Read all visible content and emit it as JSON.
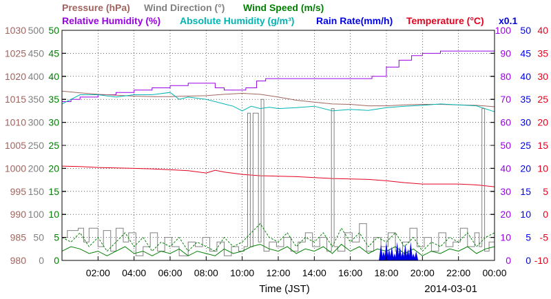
{
  "colors": {
    "pressure": "#a0645f",
    "wind_direction": "#808080",
    "wind_speed": "#008000",
    "relative_humidity": "#9a00e6",
    "absolute_humidity": "#00b4b4",
    "rain_rate": "#0000e6",
    "temperature": "#e6001e",
    "grid": "#000000"
  },
  "chart_data": {
    "type": "line",
    "date": "2014-03-01",
    "xlabel": "Time (JST)",
    "grid": true,
    "x_range": [
      0,
      24
    ],
    "x_ticks": [
      {
        "x": 2,
        "label": "02:00"
      },
      {
        "x": 4,
        "label": "04:00"
      },
      {
        "x": 6,
        "label": "06:00"
      },
      {
        "x": 8,
        "label": "08:00"
      },
      {
        "x": 10,
        "label": "10:00"
      },
      {
        "x": 12,
        "label": "12:00"
      },
      {
        "x": 14,
        "label": "14:00"
      },
      {
        "x": 16,
        "label": "16:00"
      },
      {
        "x": 18,
        "label": "18:00"
      },
      {
        "x": 20,
        "label": "20:00"
      },
      {
        "x": 22,
        "label": "22:00"
      },
      {
        "x": 24,
        "label": "00:00"
      }
    ],
    "legend_rows": [
      [
        {
          "text": "Pressure (hPa)",
          "series": "pressure"
        },
        {
          "text": "Wind Direction (°)",
          "series": "wind_direction"
        },
        {
          "text": "Wind Speed (m/s)",
          "series": "wind_speed"
        }
      ],
      [
        {
          "text": "Relative Humidity (%)",
          "series": "relative_humidity"
        },
        {
          "text": "Absolute Humidity (g/m³)",
          "series": "absolute_humidity"
        },
        {
          "text": "Rain Rate(mm/h)",
          "series": "rain_rate"
        },
        {
          "text": "Temperature (°C)",
          "series": "temperature"
        },
        {
          "text": "x0.1",
          "series": "rain_rate"
        }
      ]
    ],
    "axes": [
      {
        "key": "pressure",
        "side": "left",
        "range": [
          980,
          1030
        ],
        "ticks": [
          "980",
          "985",
          "990",
          "995",
          "1000",
          "1005",
          "1010",
          "1015",
          "1020",
          "1025",
          "1030"
        ]
      },
      {
        "key": "wind_direction",
        "side": "left",
        "range": [
          0,
          500
        ],
        "ticks": [
          "0",
          "50",
          "100",
          "150",
          "200",
          "250",
          "300",
          "350",
          "400",
          "450",
          "500"
        ]
      },
      {
        "key": "wind_speed",
        "side": "left",
        "range": [
          0,
          50
        ],
        "ticks": [
          "0",
          "5",
          "10",
          "15",
          "20",
          "25",
          "30",
          "35",
          "40",
          "45",
          "50"
        ]
      },
      {
        "key": "relative_humidity",
        "side": "right",
        "range": [
          0,
          100
        ],
        "ticks": [
          "0",
          "10",
          "20",
          "30",
          "40",
          "50",
          "60",
          "70",
          "80",
          "90",
          "100"
        ]
      },
      {
        "key": "rain_rate",
        "side": "right",
        "range": [
          0,
          50
        ],
        "ticks": [
          "0",
          "5",
          "10",
          "15",
          "20",
          "25",
          "30",
          "35",
          "40",
          "45",
          "50"
        ]
      },
      {
        "key": "temperature",
        "side": "right",
        "range": [
          -10,
          40
        ],
        "ticks": [
          "-10",
          "-5",
          "0",
          "5",
          "10",
          "15",
          "20",
          "25",
          "30",
          "35",
          "40"
        ]
      }
    ],
    "series": [
      {
        "key": "relative_humidity",
        "axis": "relative_humidity",
        "style": "step",
        "x": [
          0,
          0.5,
          1,
          2,
          3,
          4,
          5,
          6,
          7,
          7.8,
          8.5,
          9,
          9.5,
          10.2,
          10.8,
          11.3,
          12,
          13,
          14,
          15,
          16,
          17.2,
          18,
          18.7,
          19.4,
          20,
          21,
          22,
          23,
          24
        ],
        "y": [
          69,
          70,
          71,
          72,
          73,
          74,
          75,
          76,
          77,
          77,
          75,
          74,
          74,
          75,
          78,
          79,
          79,
          79,
          79,
          79,
          79,
          80,
          84,
          87,
          89,
          90,
          91,
          91,
          91,
          91
        ]
      },
      {
        "key": "pressure",
        "axis": "pressure",
        "style": "line",
        "x": [
          0,
          1,
          2,
          3,
          4,
          5,
          6,
          7,
          8,
          9,
          10,
          11,
          12,
          13,
          14,
          15,
          16,
          17,
          18,
          19,
          20,
          21,
          22,
          23,
          24
        ],
        "y": [
          1016.8,
          1016.4,
          1016.1,
          1015.9,
          1015.7,
          1015.6,
          1015.6,
          1015.7,
          1015.8,
          1016.1,
          1016.3,
          1016.1,
          1015.5,
          1014.8,
          1014.4,
          1014.0,
          1013.9,
          1013.6,
          1013.6,
          1013.8,
          1013.9,
          1013.9,
          1013.8,
          1013.7,
          1013.4
        ]
      },
      {
        "key": "absolute_humidity",
        "axis": "wind_speed",
        "style": "line",
        "x": [
          0,
          0.5,
          1,
          2,
          3,
          4,
          5,
          6,
          6.5,
          7,
          8,
          9,
          9.5,
          10,
          10.5,
          11,
          11.5,
          12,
          13,
          14,
          15,
          16,
          17,
          18,
          19,
          20,
          21,
          22,
          23,
          24
        ],
        "y": [
          34,
          35,
          36,
          36,
          35.5,
          36,
          36,
          36.5,
          35,
          35.5,
          35,
          34,
          33.5,
          32.5,
          33.5,
          33,
          33.3,
          33,
          33.2,
          33.5,
          32.5,
          32.8,
          32.6,
          33.2,
          33.5,
          33.7,
          34,
          33.8,
          33.6,
          32.3
        ]
      },
      {
        "key": "temperature",
        "axis": "temperature",
        "style": "line",
        "x": [
          0,
          1,
          2,
          3,
          4,
          5,
          6,
          7,
          8,
          8.5,
          9,
          10,
          11,
          12,
          13,
          14,
          15,
          16,
          17,
          18,
          19,
          20,
          21,
          22,
          23,
          24
        ],
        "y": [
          10.5,
          10.4,
          10.2,
          10.1,
          10.0,
          9.9,
          9.7,
          9.5,
          9.0,
          9.6,
          9.2,
          8.7,
          8.4,
          8.3,
          8.2,
          8.0,
          7.8,
          7.7,
          7.6,
          7.3,
          6.9,
          6.6,
          6.6,
          6.6,
          6.4,
          6.0
        ]
      },
      {
        "key": "wind_direction",
        "axis": "wind_direction",
        "style": "step",
        "x": [
          0,
          0.3,
          0.9,
          1.2,
          1.5,
          2.0,
          2.3,
          2.7,
          3.0,
          3.4,
          3.7,
          4.1,
          4.5,
          4.9,
          5.3,
          5.7,
          6.1,
          6.5,
          7.0,
          7.4,
          7.8,
          8.2,
          8.6,
          9.0,
          9.4,
          9.8,
          10.1,
          10.3,
          10.45,
          10.6,
          10.9,
          11.05,
          11.2,
          11.5,
          11.9,
          12.3,
          12.7,
          13.1,
          13.5,
          13.9,
          14.3,
          14.7,
          14.95,
          15.1,
          15.3,
          15.7,
          16.1,
          16.5,
          16.9,
          17.3,
          17.7,
          18.1,
          18.5,
          18.9,
          19.3,
          19.7,
          20.1,
          20.5,
          20.9,
          21.3,
          21.7,
          22.1,
          22.5,
          22.9,
          23.15,
          23.3,
          23.45,
          23.7,
          24
        ],
        "y": [
          50,
          65,
          70,
          40,
          70,
          30,
          65,
          20,
          70,
          40,
          60,
          10,
          30,
          60,
          20,
          50,
          30,
          10,
          40,
          30,
          50,
          20,
          40,
          10,
          30,
          20,
          30,
          320,
          30,
          320,
          40,
          350,
          20,
          40,
          30,
          50,
          20,
          40,
          60,
          30,
          50,
          20,
          330,
          30,
          20,
          60,
          40,
          80,
          20,
          50,
          30,
          60,
          20,
          40,
          70,
          30,
          50,
          20,
          60,
          30,
          40,
          70,
          30,
          60,
          30,
          330,
          20,
          40,
          20
        ]
      },
      {
        "key": "wind_speed_max",
        "axis": "wind_speed",
        "style": "line",
        "x": [
          0,
          0.5,
          1,
          1.5,
          2,
          2.5,
          3,
          3.5,
          4,
          4.5,
          5,
          5.5,
          6,
          6.5,
          7,
          7.5,
          8,
          8.5,
          9,
          9.5,
          10,
          10.5,
          11,
          11.5,
          12,
          12.5,
          13,
          13.5,
          14,
          14.5,
          15,
          15.5,
          16,
          16.5,
          17,
          17.5,
          18,
          18.5,
          19,
          19.5,
          20,
          20.5,
          21,
          21.5,
          22,
          22.5,
          23,
          23.5,
          24
        ],
        "y": [
          5,
          4,
          6,
          3,
          5,
          2,
          4,
          6,
          3,
          5,
          2,
          4,
          3,
          5,
          2,
          4,
          3,
          2,
          5,
          3,
          4,
          6,
          8,
          5,
          4,
          6,
          3,
          5,
          4,
          6,
          3,
          7,
          4,
          6,
          3,
          5,
          4,
          6,
          3,
          5,
          2,
          4,
          3,
          5,
          4,
          6,
          3,
          5,
          6
        ]
      },
      {
        "key": "wind_speed_avg",
        "axis": "wind_speed",
        "style": "line",
        "x": [
          0,
          0.5,
          1,
          1.5,
          2,
          2.5,
          3,
          3.5,
          4,
          4.5,
          5,
          5.5,
          6,
          6.5,
          7,
          7.5,
          8,
          8.5,
          9,
          9.5,
          10,
          10.5,
          11,
          11.5,
          12,
          12.5,
          13,
          13.5,
          14,
          14.5,
          15,
          15.5,
          16,
          16.5,
          17,
          17.5,
          18,
          18.5,
          19,
          19.5,
          20,
          20.5,
          21,
          21.5,
          22,
          22.5,
          23,
          23.5,
          24
        ],
        "y": [
          2,
          3,
          2.5,
          1.5,
          2,
          1,
          2,
          3,
          1.5,
          2,
          1,
          2,
          1.5,
          2.5,
          1,
          2,
          1.5,
          1,
          2.5,
          1.5,
          2,
          3,
          3.5,
          2.5,
          2,
          3,
          1.5,
          2.5,
          2,
          3,
          1.5,
          3.5,
          2,
          3,
          1.5,
          2.5,
          2,
          3,
          1.5,
          2.5,
          1,
          2,
          1.5,
          2.5,
          2,
          3,
          1.5,
          2.5,
          3
        ]
      },
      {
        "key": "rain_rate",
        "axis": "rain_rate",
        "style": "bars",
        "x": [
          17.7,
          17.85,
          18.0,
          18.15,
          18.3,
          18.45,
          18.6,
          18.75,
          18.9,
          19.05,
          19.2,
          19.35,
          19.5,
          19.65
        ],
        "y": [
          3.5,
          2,
          4,
          2.5,
          3,
          1.5,
          4,
          3,
          2,
          3.5,
          2.5,
          4,
          1.5,
          2
        ]
      }
    ]
  }
}
